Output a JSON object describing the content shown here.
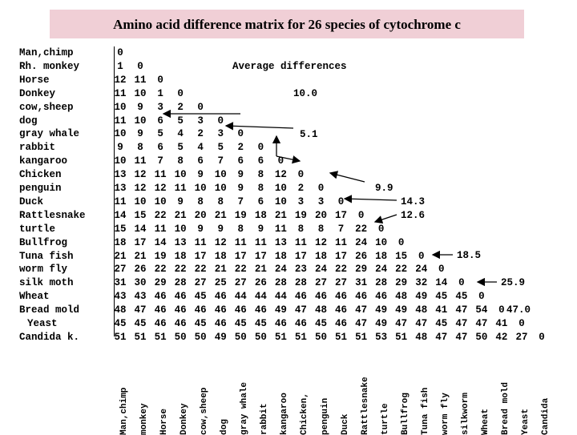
{
  "title": "Amino acid difference matrix for 26 species of cytochrome c",
  "species": [
    "Man,chimp",
    "Rh. monkey",
    "Horse",
    "Donkey",
    "cow,sheep",
    "dog",
    "gray whale",
    "rabbit",
    "kangaroo",
    "Chicken",
    "penguin",
    "Duck",
    "Rattlesnake",
    "turtle",
    "Bullfrog",
    "Tuna fish",
    "worm fly",
    "silk moth",
    "Wheat",
    "Bread mold",
    "Yeast",
    "Candida k."
  ],
  "column_labels": [
    "Man,chimp",
    "monkey",
    "Horse",
    "Donkey",
    "cow,sheep",
    "dog",
    "gray whale",
    "rabbit",
    "kangaroo",
    "Chicken,",
    "penguin",
    "Duck",
    "Rattlesnake",
    "turtle",
    "Bullfrog",
    "Tuna fish",
    "worm fly",
    "silkworm",
    "Wheat",
    "Bread mold",
    "Yeast",
    "Candida"
  ],
  "matrix": [
    [
      "0"
    ],
    [
      "1",
      "0"
    ],
    [
      "12",
      "11",
      "0"
    ],
    [
      "11",
      "10",
      "1",
      "0"
    ],
    [
      "10",
      "9",
      "3",
      "2",
      "0"
    ],
    [
      "11",
      "10",
      "6",
      "5",
      "3",
      "0"
    ],
    [
      "10",
      "9",
      "5",
      "4",
      "2",
      "3",
      "0"
    ],
    [
      "9",
      "8",
      "6",
      "5",
      "4",
      "5",
      "2",
      "0"
    ],
    [
      "10",
      "11",
      "7",
      "8",
      "6",
      "7",
      "6",
      "6",
      "0"
    ],
    [
      "13",
      "12",
      "11",
      "10",
      "9",
      "10",
      "9",
      "8",
      "12",
      "0"
    ],
    [
      "13",
      "12",
      "12",
      "11",
      "10",
      "10",
      "9",
      "8",
      "10",
      "2",
      "0"
    ],
    [
      "11",
      "10",
      "10",
      "9",
      "8",
      "8",
      "7",
      "6",
      "10",
      "3",
      "3",
      "0"
    ],
    [
      "14",
      "15",
      "22",
      "21",
      "20",
      "21",
      "19",
      "18",
      "21",
      "19",
      "20",
      "17",
      "0"
    ],
    [
      "15",
      "14",
      "11",
      "10",
      "9",
      "9",
      "8",
      "9",
      "11",
      "8",
      "8",
      "7",
      "22",
      "0"
    ],
    [
      "18",
      "17",
      "14",
      "13",
      "11",
      "12",
      "11",
      "11",
      "13",
      "11",
      "12",
      "11",
      "24",
      "10",
      "0"
    ],
    [
      "21",
      "21",
      "19",
      "18",
      "17",
      "18",
      "17",
      "17",
      "18",
      "17",
      "18",
      "17",
      "26",
      "18",
      "15",
      "0"
    ],
    [
      "27",
      "26",
      "22",
      "22",
      "22",
      "21",
      "22",
      "21",
      "24",
      "23",
      "24",
      "22",
      "29",
      "24",
      "22",
      "24",
      "0"
    ],
    [
      "31",
      "30",
      "29",
      "28",
      "27",
      "25",
      "27",
      "26",
      "28",
      "28",
      "27",
      "27",
      "31",
      "28",
      "29",
      "32",
      "14",
      "0"
    ],
    [
      "43",
      "43",
      "46",
      "46",
      "45",
      "46",
      "44",
      "44",
      "44",
      "46",
      "46",
      "46",
      "46",
      "46",
      "48",
      "49",
      "45",
      "45",
      "0"
    ],
    [
      "48",
      "47",
      "46",
      "46",
      "46",
      "46",
      "46",
      "46",
      "49",
      "47",
      "48",
      "46",
      "47",
      "49",
      "49",
      "48",
      "41",
      "47",
      "54",
      "0"
    ],
    [
      "45",
      "45",
      "46",
      "46",
      "45",
      "46",
      "45",
      "45",
      "46",
      "46",
      "45",
      "46",
      "47",
      "49",
      "47",
      "47",
      "45",
      "47",
      "47",
      "41",
      "0"
    ],
    [
      "51",
      "51",
      "51",
      "50",
      "50",
      "49",
      "50",
      "50",
      "51",
      "51",
      "50",
      "51",
      "51",
      "53",
      "51",
      "48",
      "47",
      "47",
      "50",
      "42",
      "27",
      "0"
    ]
  ],
  "averages": {
    "heading": "Average differences",
    "values": [
      "10.0",
      "5.1",
      "9.9",
      "14.3",
      "12.6",
      "18.5",
      "25.9",
      "47.0"
    ]
  }
}
